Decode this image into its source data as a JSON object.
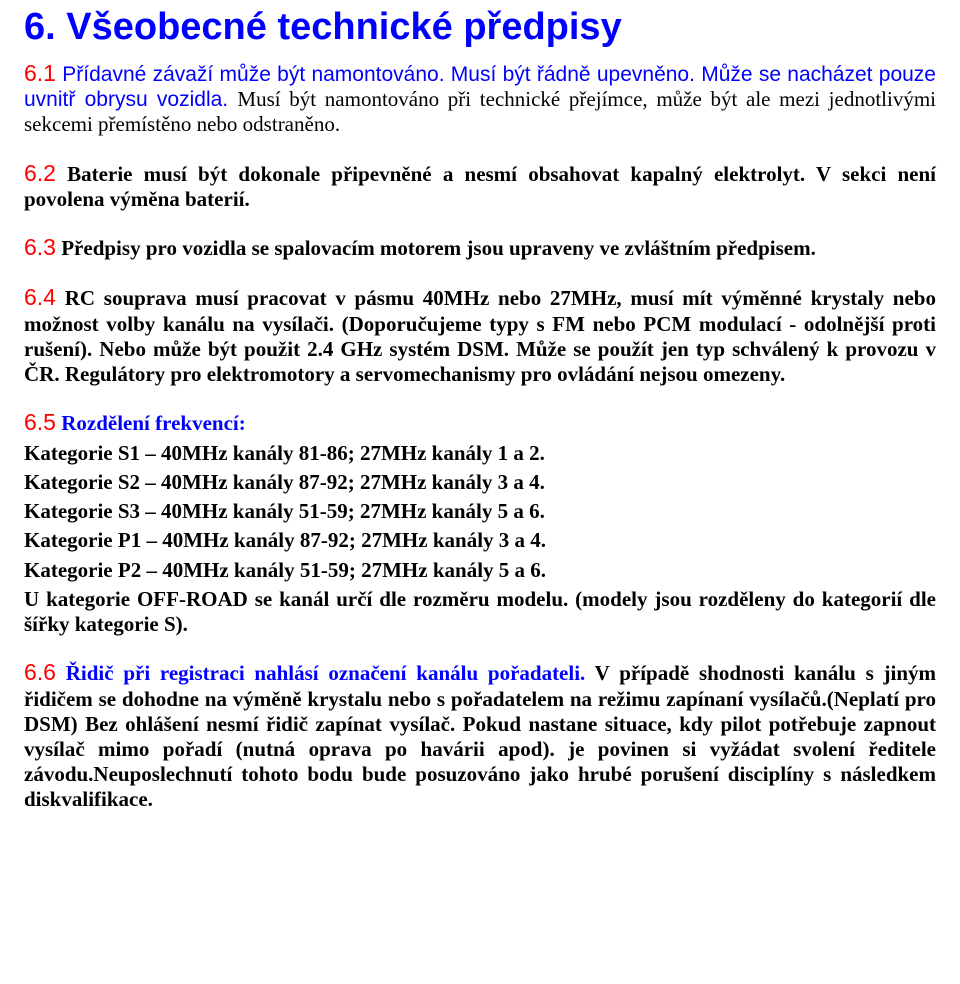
{
  "colors": {
    "blue": "#0000ff",
    "red": "#ff0000",
    "black": "#000000",
    "background": "#ffffff"
  },
  "fonts": {
    "heading_family": "Arial",
    "body_family": "Times New Roman",
    "title_size_pt": 28,
    "body_size_pt": 16,
    "section_number_size_pt": 17
  },
  "title": "6. Všeobecné technické předpisy",
  "p61": {
    "num": "6.1",
    "intro": " Přídavné závaží může být namontováno. Musí být řádně upevněno. Může se nacházet pouze uvnitř obrysu vozidla. ",
    "rest": "Musí být namontováno při technické přejímce, může být ale mezi jednotlivými sekcemi přemístěno nebo odstraněno."
  },
  "p62": {
    "num": "6.2",
    "text": " Baterie musí být dokonale připevněné a nesmí obsahovat kapalný elektrolyt. V sekci není povolena výměna baterií."
  },
  "p63": {
    "num": "6.3",
    "text": " Předpisy pro vozidla se spalovacím motorem jsou upraveny ve zvláštním předpisem."
  },
  "p64": {
    "num": "6.4",
    "text": " RC souprava musí pracovat v pásmu 40MHz nebo 27MHz, musí mít výměnné krystaly nebo možnost volby kanálu na vysílači. (Doporučujeme typy s FM nebo PCM modulací - odolnější proti rušení). Nebo může být použit 2.4 GHz systém DSM. Může se použít jen typ schválený k provozu v ČR. Regulátory pro elektromotory a servomechanismy pro ovládání nejsou omezeny."
  },
  "p65": {
    "num": "6.5",
    "heading": "  Rozdělení frekvencí:",
    "lines": [
      "Kategorie S1 – 40MHz kanály 81-86; 27MHz kanály 1 a 2.",
      "Kategorie S2 – 40MHz kanály 87-92; 27MHz kanály 3 a 4.",
      "Kategorie S3 – 40MHz kanály 51-59; 27MHz kanály 5 a 6.",
      "Kategorie P1 – 40MHz kanály 87-92; 27MHz kanály 3 a 4.",
      "Kategorie P2 – 40MHz kanály 51-59; 27MHz kanály 5 a 6.",
      "U kategorie OFF-ROAD se kanál určí dle rozměru modelu. (modely jsou rozděleny do kategorií dle šířky kategorie S)."
    ]
  },
  "p66": {
    "num": "6.6",
    "lead": " Řidič při registraci nahlásí označení kanálu pořadateli. ",
    "rest": "V případě shodnosti kanálu s jiným řidičem se dohodne na výměně krystalu nebo s pořadatelem na režimu zapínaní vysílačů.(Neplatí pro DSM) Bez ohlášení nesmí řidič zapínat vysílač. Pokud nastane situace, kdy pilot potřebuje zapnout vysílač mimo pořadí (nutná oprava po havárii apod). je povinen si vyžádat svolení ředitele závodu.Neuposlechnutí tohoto bodu bude posuzováno jako hrubé porušení disciplíny s následkem diskvalifikace."
  }
}
